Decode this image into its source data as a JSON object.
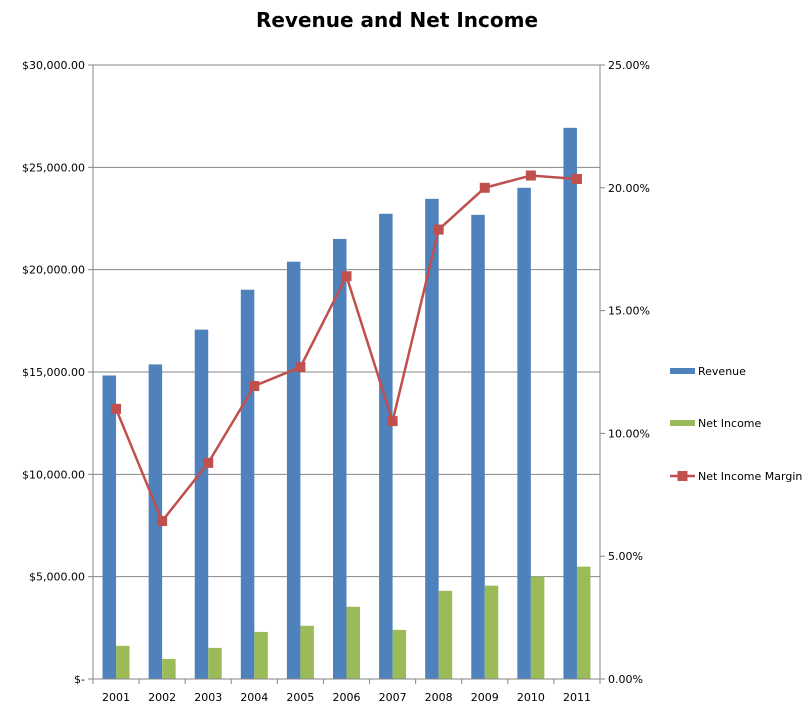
{
  "chart_data": {
    "type": "bar",
    "title": "Revenue and Net Income",
    "categories": [
      "2001",
      "2002",
      "2003",
      "2004",
      "2005",
      "2006",
      "2007",
      "2008",
      "2009",
      "2010",
      "2011"
    ],
    "series": [
      {
        "name": "Revenue",
        "type": "bar",
        "axis": "left",
        "color": "#4F81BD",
        "values": [
          14830,
          15370,
          17070,
          19020,
          20390,
          21500,
          22730,
          23460,
          22680,
          24000,
          26930
        ]
      },
      {
        "name": "Net Income",
        "type": "bar",
        "axis": "left",
        "color": "#9BBB59",
        "values": [
          1620,
          980,
          1520,
          2300,
          2600,
          3530,
          2400,
          4310,
          4560,
          5000,
          5490
        ]
      },
      {
        "name": "Net Income Margin",
        "type": "line",
        "axis": "right",
        "color": "#C0504D",
        "marker": "square",
        "values": [
          11.0,
          6.43,
          8.8,
          11.93,
          12.7,
          16.4,
          10.5,
          18.3,
          20.0,
          20.5,
          20.36
        ]
      }
    ],
    "left_axis": {
      "ylim": [
        0,
        30000
      ],
      "ticks": [
        0,
        5000,
        10000,
        15000,
        20000,
        25000,
        30000
      ],
      "tick_labels": [
        "$-",
        "$5,000.00",
        "$10,000.00",
        "$15,000.00",
        "$20,000.00",
        "$25,000.00",
        "$30,000.00"
      ]
    },
    "right_axis": {
      "ylim": [
        0,
        25
      ],
      "ticks": [
        0,
        5,
        10,
        15,
        20,
        25
      ],
      "tick_labels": [
        "0.00%",
        "5.00%",
        "10.00%",
        "15.00%",
        "20.00%",
        "25.00%"
      ]
    },
    "grid": true,
    "legend_placement": "right"
  }
}
